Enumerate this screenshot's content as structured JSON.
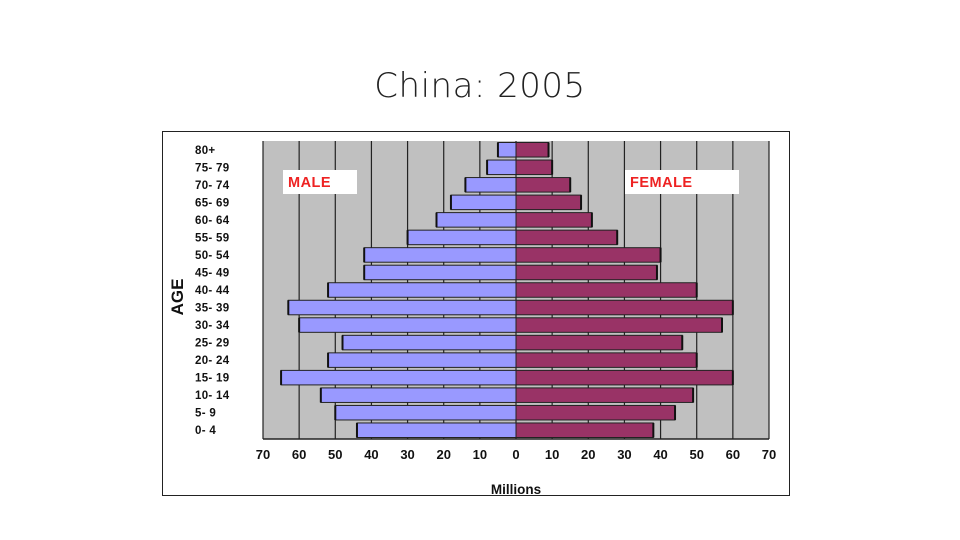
{
  "slide": {
    "title": "China: 2005"
  },
  "chart_data": {
    "type": "bar",
    "orientation": "horizontal",
    "subtype": "population-pyramid",
    "title": "China: 2005",
    "xlabel": "Millions",
    "ylabel": "AGE",
    "xlim": [
      -70,
      70
    ],
    "xticks": [
      -70,
      -60,
      -50,
      -40,
      -30,
      -20,
      -10,
      0,
      10,
      20,
      30,
      40,
      50,
      60,
      70
    ],
    "xtick_labels": [
      "70",
      "60",
      "50",
      "40",
      "30",
      "20",
      "10",
      "0",
      "10",
      "20",
      "30",
      "40",
      "50",
      "60",
      "70"
    ],
    "grid": true,
    "categories": [
      "0- 4",
      "5- 9",
      "10- 14",
      "15- 19",
      "20- 24",
      "25- 29",
      "30- 34",
      "35- 39",
      "40- 44",
      "45- 49",
      "50- 54",
      "55- 59",
      "60- 64",
      "65- 69",
      "70- 74",
      "75- 79",
      "80+"
    ],
    "series": [
      {
        "name": "MALE",
        "side": "left",
        "color": "#9999ff",
        "values": [
          44,
          50,
          54,
          65,
          52,
          48,
          60,
          63,
          52,
          42,
          42,
          30,
          22,
          18,
          14,
          8,
          5
        ]
      },
      {
        "name": "FEMALE",
        "side": "right",
        "color": "#993366",
        "values": [
          38,
          44,
          49,
          60,
          50,
          46,
          57,
          60,
          50,
          39,
          40,
          28,
          21,
          18,
          15,
          10,
          9
        ]
      }
    ],
    "colors": {
      "plot_background": "#c0c0c0",
      "gridline": "#222222",
      "label_red": "#ee2222"
    }
  }
}
